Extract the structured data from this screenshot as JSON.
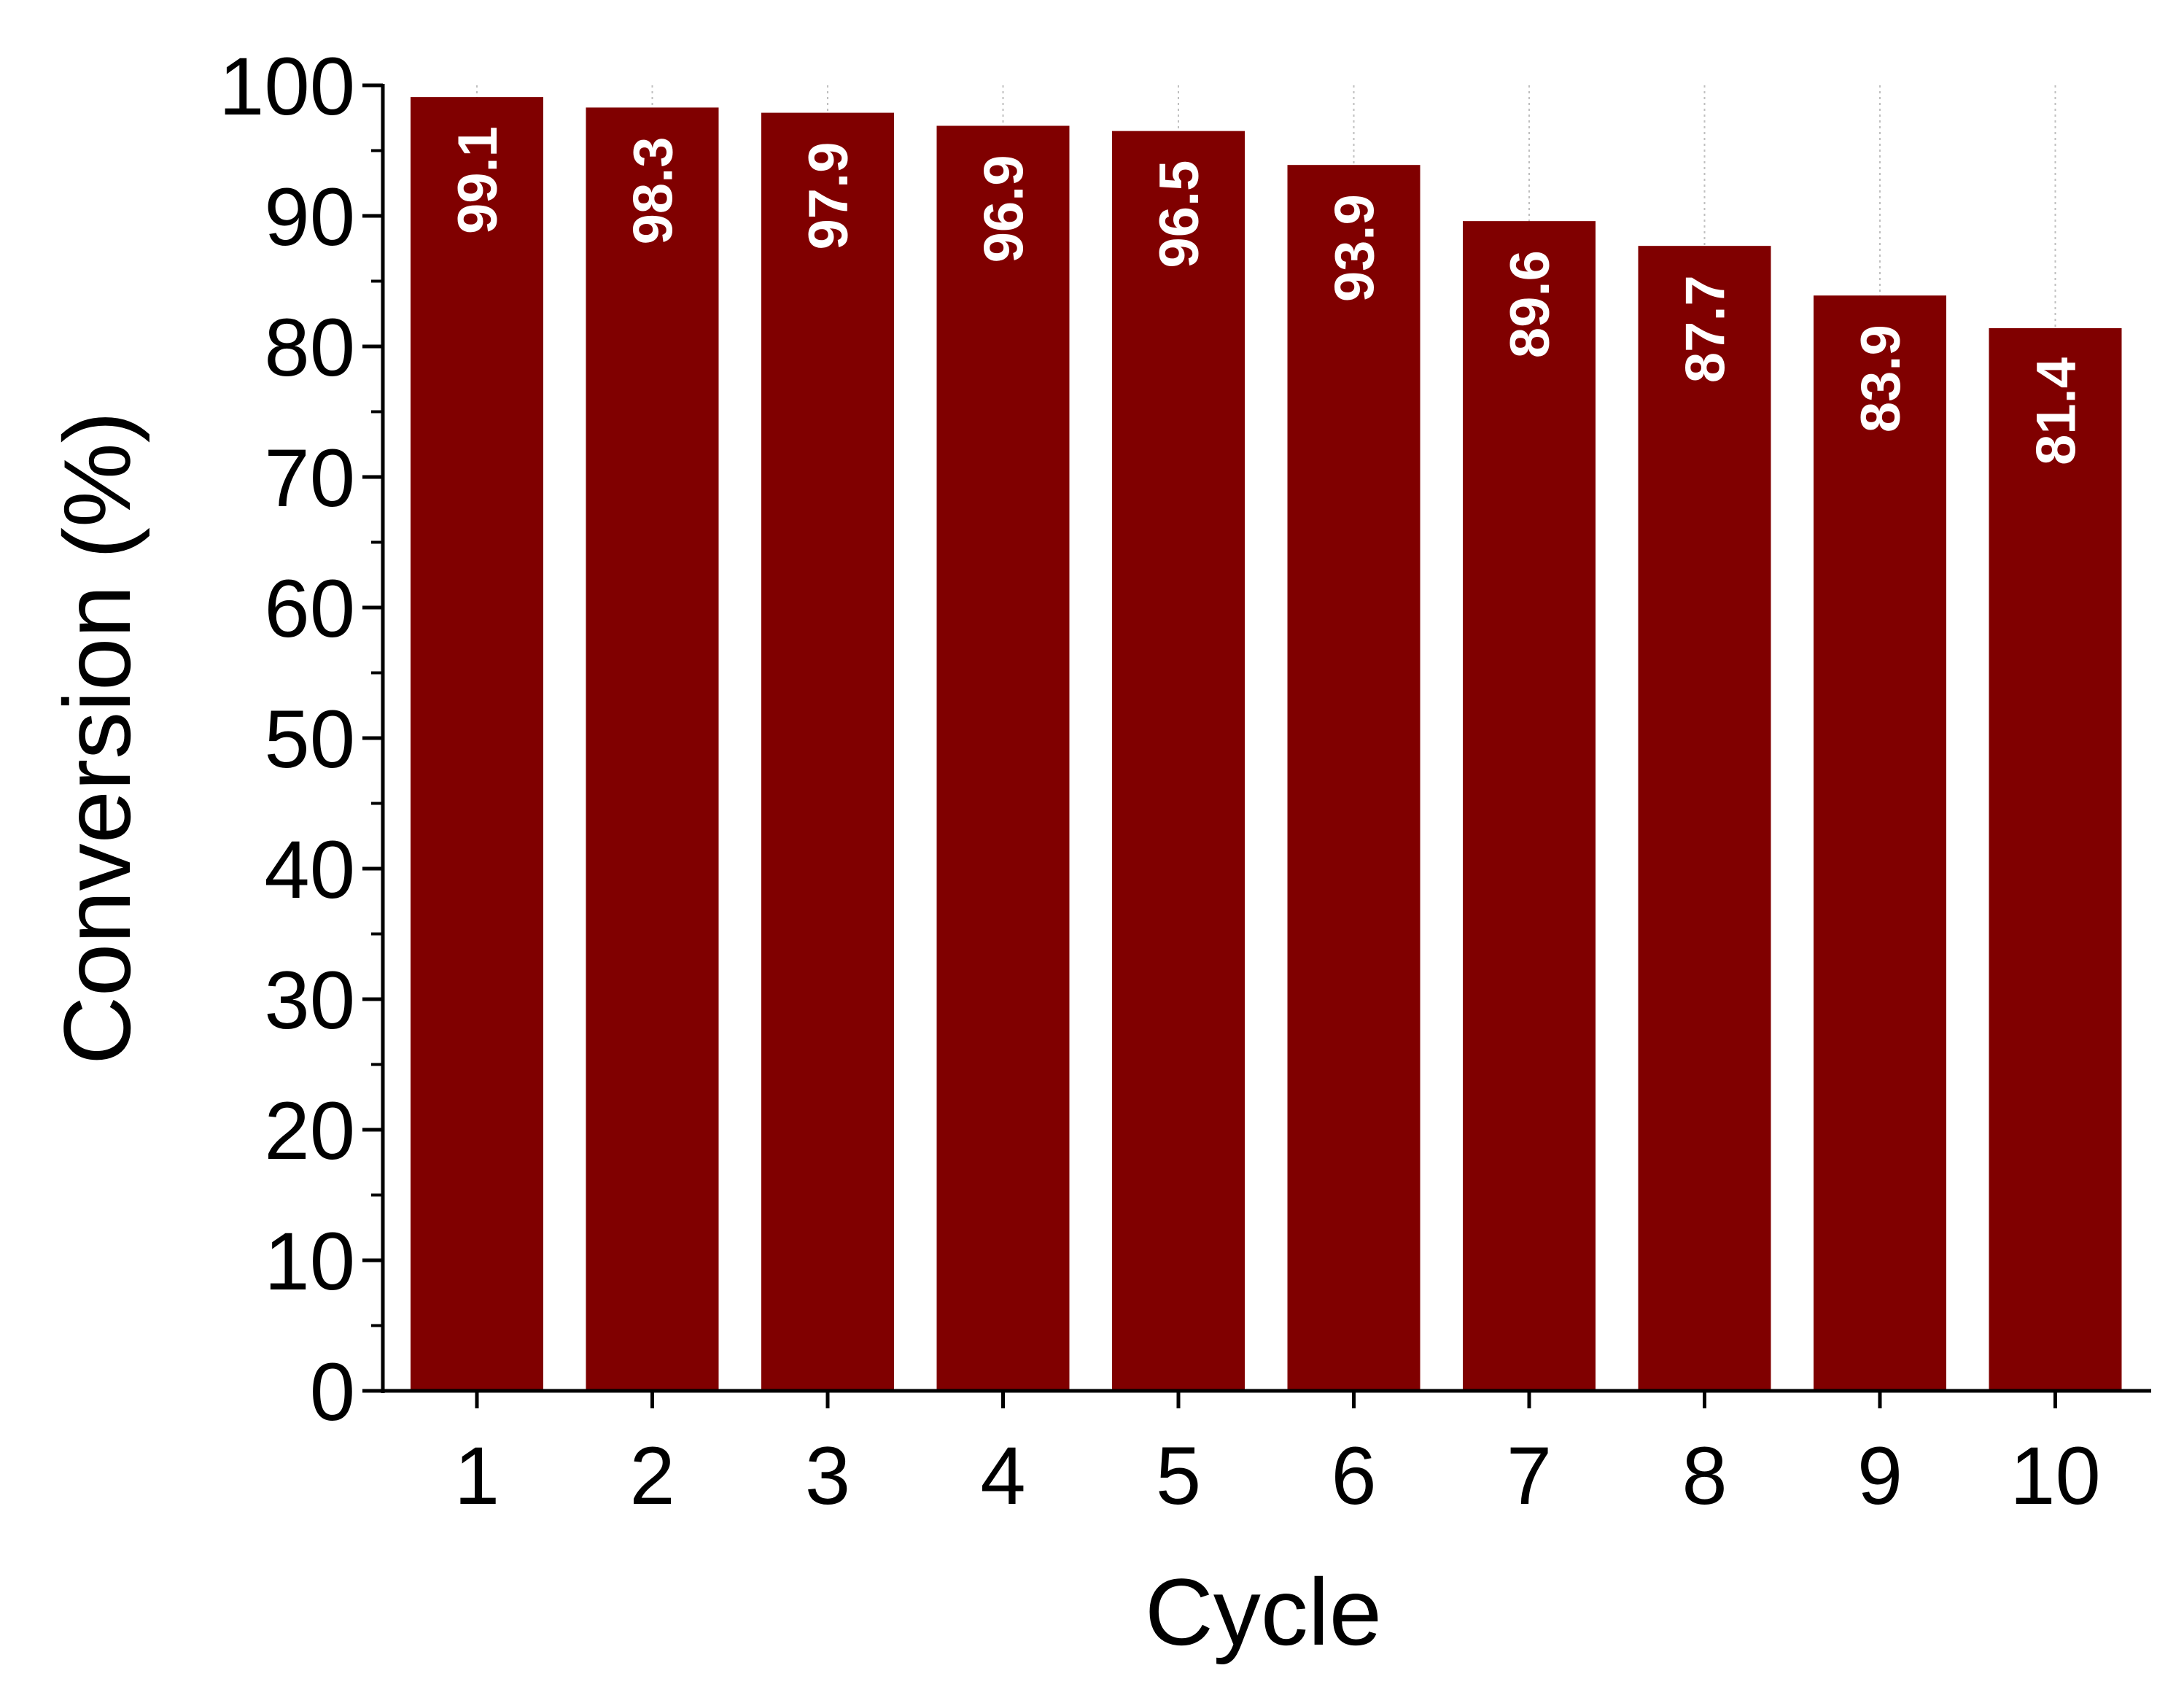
{
  "colors": {
    "bar": "#800000",
    "axis": "#000000",
    "grid": "#bfbfbf",
    "bar_label": "#ffffff"
  },
  "chart_data": {
    "type": "bar",
    "categories": [
      "1",
      "2",
      "3",
      "4",
      "5",
      "6",
      "7",
      "8",
      "9",
      "10"
    ],
    "values": [
      99.1,
      98.3,
      97.9,
      96.9,
      96.5,
      93.9,
      89.6,
      87.7,
      83.9,
      81.4
    ],
    "data_labels": [
      "99.1",
      "98.3",
      "97.9",
      "96.9",
      "96.5",
      "93.9",
      "89.6",
      "87.7",
      "83.9",
      "81.4"
    ],
    "title": "",
    "xlabel": "Cycle",
    "ylabel": "Conversion (%)",
    "ylim": [
      0,
      100
    ],
    "yticks": [
      "0",
      "10",
      "20",
      "30",
      "40",
      "50",
      "60",
      "70",
      "80",
      "90",
      "100"
    ],
    "grid": "vertical dotted at categories",
    "legend": "none"
  }
}
